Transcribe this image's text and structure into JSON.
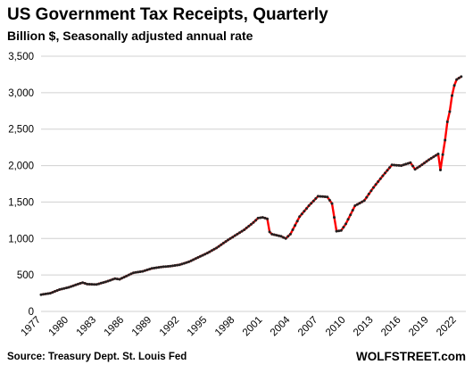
{
  "chart_data": {
    "type": "line",
    "title": "US Government Tax Receipts, Quarterly",
    "subtitle": "Billion $, Seasonally adjusted annual rate",
    "xlabel": "",
    "ylabel": "",
    "ylim": [
      0,
      3500
    ],
    "xlim": [
      1977,
      2023
    ],
    "grid": true,
    "y_ticks": [
      "0",
      "500",
      "1,000",
      "1,500",
      "2,000",
      "2,500",
      "3,000",
      "3,500"
    ],
    "x_ticks": [
      "1977",
      "1980",
      "1983",
      "1986",
      "1989",
      "1992",
      "1995",
      "1998",
      "2001",
      "2004",
      "2007",
      "2010",
      "2013",
      "2016",
      "2019",
      "2022"
    ],
    "colors": {
      "line": "#ff0000",
      "markers": "#222222",
      "grid": "#d0d0d0"
    },
    "series": [
      {
        "x": [
          1977.0,
          1978.0,
          1979.0,
          1980.0,
          1981.0,
          1981.5,
          1982.0,
          1983.0,
          1984.0,
          1985.0,
          1985.5,
          1986.0,
          1987.0,
          1988.0,
          1989.0,
          1990.0,
          1991.0,
          1992.0,
          1993.0,
          1994.0,
          1995.0,
          1996.0,
          1997.0,
          1998.0,
          1999.0,
          2000.0,
          2000.5,
          2001.0,
          2001.5,
          2001.75,
          2002.0,
          2003.0,
          2003.5,
          2004.0,
          2005.0,
          2006.0,
          2007.0,
          2008.0,
          2008.5,
          2009.0,
          2009.5,
          2010.0,
          2011.0,
          2012.0,
          2013.0,
          2014.0,
          2015.0,
          2016.0,
          2017.0,
          2017.5,
          2018.0,
          2019.0,
          2020.0,
          2020.25,
          2020.5,
          2020.75,
          2021.0,
          2021.25,
          2021.5,
          2021.75,
          2022.0,
          2022.5
        ],
        "y": [
          230,
          250,
          300,
          330,
          375,
          395,
          375,
          370,
          405,
          450,
          440,
          470,
          530,
          550,
          590,
          610,
          620,
          640,
          680,
          740,
          800,
          870,
          960,
          1040,
          1120,
          1220,
          1280,
          1290,
          1270,
          1090,
          1060,
          1030,
          1000,
          1060,
          1300,
          1450,
          1580,
          1570,
          1480,
          1100,
          1110,
          1200,
          1450,
          1520,
          1700,
          1860,
          2010,
          2000,
          2040,
          1950,
          1990,
          2080,
          2160,
          1940,
          2150,
          2350,
          2600,
          2740,
          2960,
          3100,
          3180,
          3220
        ]
      }
    ]
  },
  "source_text": "Source: Treasury Dept. St. Louis Fed",
  "brand_text": "WOLFSTREET.com"
}
